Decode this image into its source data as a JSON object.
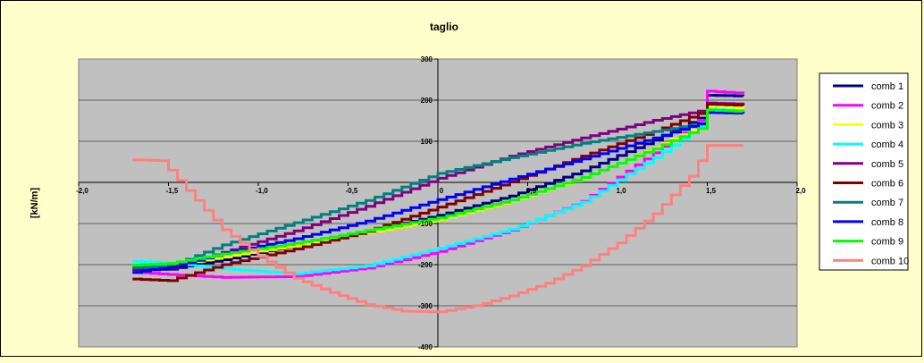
{
  "chart_data": {
    "type": "line",
    "title": "taglio",
    "xlabel": "",
    "ylabel": "[kN/m]",
    "xlim": [
      -2.0,
      2.0
    ],
    "ylim": [
      -400,
      300
    ],
    "x_ticks": [
      -2.0,
      -1.5,
      -1.0,
      -0.5,
      0,
      0.5,
      1.0,
      1.5,
      2.0
    ],
    "x_tick_labels": [
      "-2,0",
      "-1,5",
      "-1,0",
      "-0,5",
      "0",
      "0,5",
      "1,0",
      "1,5",
      "2,0"
    ],
    "y_ticks": [
      -400,
      -300,
      -200,
      -100,
      0,
      100,
      200,
      300
    ],
    "y_tick_labels": [
      "-400",
      "-300",
      "-200",
      "-100",
      "0",
      "100",
      "200",
      "300"
    ],
    "grid": "horizontal",
    "legend_position": "right",
    "plot_background": "#c0c0c0",
    "page_background": "#ffffcc",
    "series": [
      {
        "name": "comb 1",
        "color": "#000080",
        "points": [
          [
            -1.7,
            -213
          ],
          [
            -1.5,
            -211
          ],
          [
            -1.2,
            -188
          ],
          [
            -0.8,
            -153
          ],
          [
            -0.4,
            -119
          ],
          [
            0,
            -80
          ],
          [
            0.4,
            -33
          ],
          [
            0.8,
            28
          ],
          [
            1.2,
            103
          ],
          [
            1.5,
            167
          ],
          [
            1.5,
            212
          ],
          [
            1.7,
            210
          ]
        ]
      },
      {
        "name": "comb 2",
        "color": "#ff00ff",
        "points": [
          [
            -1.7,
            -218
          ],
          [
            -1.5,
            -224
          ],
          [
            -1.2,
            -231
          ],
          [
            -0.8,
            -229
          ],
          [
            -0.4,
            -208
          ],
          [
            0,
            -168
          ],
          [
            0.4,
            -116
          ],
          [
            0.8,
            -46
          ],
          [
            1.2,
            72
          ],
          [
            1.5,
            167
          ],
          [
            1.5,
            222
          ],
          [
            1.7,
            216
          ]
        ]
      },
      {
        "name": "comb 3",
        "color": "#ffff00",
        "points": [
          [
            -1.7,
            -209
          ],
          [
            -1.5,
            -203
          ],
          [
            -1.2,
            -181
          ],
          [
            -0.8,
            -153
          ],
          [
            -0.4,
            -122
          ],
          [
            0,
            -90
          ],
          [
            0.4,
            -45
          ],
          [
            0.8,
            11
          ],
          [
            1.2,
            84
          ],
          [
            1.5,
            148
          ],
          [
            1.5,
            184
          ],
          [
            1.7,
            180
          ]
        ]
      },
      {
        "name": "comb 4",
        "color": "#00ffff",
        "points": [
          [
            -1.7,
            -192
          ],
          [
            -1.5,
            -196
          ],
          [
            -1.2,
            -210
          ],
          [
            -0.8,
            -222
          ],
          [
            -0.4,
            -203
          ],
          [
            0,
            -160
          ],
          [
            0.4,
            -114
          ],
          [
            0.8,
            -48
          ],
          [
            1.2,
            60
          ],
          [
            1.5,
            150
          ],
          [
            1.5,
            178
          ],
          [
            1.7,
            174
          ]
        ]
      },
      {
        "name": "comb 5",
        "color": "#800080",
        "points": [
          [
            -1.7,
            -210
          ],
          [
            -1.5,
            -208
          ],
          [
            -1.2,
            -170
          ],
          [
            -0.8,
            -118
          ],
          [
            -0.4,
            -58
          ],
          [
            0,
            10
          ],
          [
            0.4,
            64
          ],
          [
            0.8,
            108
          ],
          [
            1.2,
            151
          ],
          [
            1.5,
            178
          ],
          [
            1.5,
            193
          ],
          [
            1.7,
            190
          ]
        ]
      },
      {
        "name": "comb 6",
        "color": "#800000",
        "points": [
          [
            -1.7,
            -235
          ],
          [
            -1.5,
            -239
          ],
          [
            -1.2,
            -200
          ],
          [
            -0.8,
            -162
          ],
          [
            -0.4,
            -119
          ],
          [
            0,
            -60
          ],
          [
            0.4,
            1
          ],
          [
            0.8,
            64
          ],
          [
            1.2,
            124
          ],
          [
            1.5,
            176
          ],
          [
            1.5,
            190
          ],
          [
            1.7,
            187
          ]
        ]
      },
      {
        "name": "comb 7",
        "color": "#008080",
        "points": [
          [
            -1.7,
            -207
          ],
          [
            -1.5,
            -204
          ],
          [
            -1.2,
            -152
          ],
          [
            -0.8,
            -98
          ],
          [
            -0.4,
            -44
          ],
          [
            0,
            22
          ],
          [
            0.4,
            60
          ],
          [
            0.8,
            95
          ],
          [
            1.2,
            124
          ],
          [
            1.5,
            145
          ],
          [
            1.5,
            170
          ],
          [
            1.7,
            168
          ]
        ]
      },
      {
        "name": "comb 8",
        "color": "#0000ff",
        "points": [
          [
            -1.7,
            -219
          ],
          [
            -1.5,
            -206
          ],
          [
            -1.2,
            -173
          ],
          [
            -0.8,
            -137
          ],
          [
            -0.4,
            -94
          ],
          [
            0,
            -42
          ],
          [
            0.4,
            8
          ],
          [
            0.8,
            57
          ],
          [
            1.2,
            108
          ],
          [
            1.5,
            150
          ],
          [
            1.5,
            170
          ],
          [
            1.7,
            168
          ]
        ]
      },
      {
        "name": "comb 9",
        "color": "#00ff00",
        "points": [
          [
            -1.7,
            -201
          ],
          [
            -1.5,
            -197
          ],
          [
            -1.2,
            -174
          ],
          [
            -0.8,
            -148
          ],
          [
            -0.4,
            -117
          ],
          [
            0,
            -86
          ],
          [
            0.4,
            -43
          ],
          [
            0.8,
            12
          ],
          [
            1.2,
            82
          ],
          [
            1.5,
            141
          ],
          [
            1.5,
            176
          ],
          [
            1.7,
            172
          ]
        ]
      },
      {
        "name": "comb 10",
        "color": "#ff8080",
        "points": [
          [
            -1.7,
            55
          ],
          [
            -1.5,
            52
          ],
          [
            -1.5,
            30
          ],
          [
            -1.4,
            -20
          ],
          [
            -1.3,
            -68
          ],
          [
            -1.2,
            -115
          ],
          [
            -1.0,
            -180
          ],
          [
            -0.8,
            -233
          ],
          [
            -0.6,
            -268
          ],
          [
            -0.4,
            -297
          ],
          [
            -0.2,
            -313
          ],
          [
            0,
            -315
          ],
          [
            0.2,
            -300
          ],
          [
            0.4,
            -276
          ],
          [
            0.6,
            -245
          ],
          [
            0.8,
            -203
          ],
          [
            1.0,
            -147
          ],
          [
            1.2,
            -76
          ],
          [
            1.4,
            15
          ],
          [
            1.5,
            90
          ],
          [
            1.7,
            90
          ]
        ]
      }
    ]
  }
}
